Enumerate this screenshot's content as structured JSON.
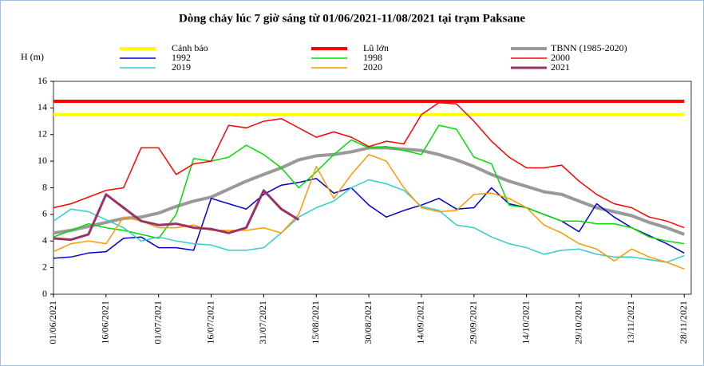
{
  "chart_data": {
    "type": "line",
    "title": "Dòng chảy lúc 7 giờ sáng từ 01/06/2021-11/08/2021 tại trạm Paksane",
    "y_label": "H (m)",
    "x": [
      "01/06/2021",
      "06/06/2021",
      "11/06/2021",
      "16/06/2021",
      "21/06/2021",
      "26/06/2021",
      "01/07/2021",
      "06/07/2021",
      "11/07/2021",
      "16/07/2021",
      "21/07/2021",
      "26/07/2021",
      "31/07/2021",
      "05/08/2021",
      "10/08/2021",
      "15/08/2021",
      "20/08/2021",
      "25/08/2021",
      "30/08/2021",
      "04/09/2021",
      "09/09/2021",
      "14/09/2021",
      "19/09/2021",
      "24/09/2021",
      "29/09/2021",
      "04/10/2021",
      "09/10/2021",
      "14/10/2021",
      "19/10/2021",
      "24/10/2021",
      "29/10/2021",
      "03/11/2021",
      "08/11/2021",
      "13/11/2021",
      "18/11/2021",
      "23/11/2021",
      "28/11/2021"
    ],
    "xlim": [
      "01/06/2021",
      "30/11/2021"
    ],
    "xticks": [
      "01/06/2021",
      "16/06/2021",
      "01/07/2021",
      "16/07/2021",
      "31/07/2021",
      "15/08/2021",
      "30/08/2021",
      "14/09/2021",
      "29/09/2021",
      "14/10/2021",
      "29/10/2021",
      "13/11/2021",
      "28/11/2021"
    ],
    "ylim": [
      0,
      16
    ],
    "yticks": [
      0,
      2,
      4,
      6,
      8,
      10,
      12,
      14,
      16
    ],
    "series": [
      {
        "name": "Cảnh báo",
        "color": "#ffff00",
        "width": 4,
        "values": [
          13.5,
          13.5,
          13.5,
          13.5,
          13.5,
          13.5,
          13.5,
          13.5,
          13.5,
          13.5,
          13.5,
          13.5,
          13.5,
          13.5,
          13.5,
          13.5,
          13.5,
          13.5,
          13.5,
          13.5,
          13.5,
          13.5,
          13.5,
          13.5,
          13.5,
          13.5,
          13.5,
          13.5,
          13.5,
          13.5,
          13.5,
          13.5,
          13.5,
          13.5,
          13.5,
          13.5,
          13.5
        ]
      },
      {
        "name": "Lũ lớn",
        "color": "#ff0000",
        "width": 4,
        "values": [
          14.5,
          14.5,
          14.5,
          14.5,
          14.5,
          14.5,
          14.5,
          14.5,
          14.5,
          14.5,
          14.5,
          14.5,
          14.5,
          14.5,
          14.5,
          14.5,
          14.5,
          14.5,
          14.5,
          14.5,
          14.5,
          14.5,
          14.5,
          14.5,
          14.5,
          14.5,
          14.5,
          14.5,
          14.5,
          14.5,
          14.5,
          14.5,
          14.5,
          14.5,
          14.5,
          14.5,
          14.5
        ]
      },
      {
        "name": "TBNN (1985-2020)",
        "color": "#999999",
        "width": 4,
        "values": [
          4.6,
          4.8,
          5.1,
          5.4,
          5.7,
          5.8,
          6.1,
          6.6,
          7.0,
          7.3,
          7.9,
          8.5,
          9.0,
          9.5,
          10.1,
          10.4,
          10.5,
          10.7,
          11.0,
          11.0,
          10.9,
          10.8,
          10.5,
          10.1,
          9.6,
          9.0,
          8.5,
          8.1,
          7.7,
          7.5,
          7.0,
          6.5,
          6.2,
          5.9,
          5.4,
          5.0,
          4.5
        ]
      },
      {
        "name": "1992",
        "color": "#0000cc",
        "width": 1.5,
        "values": [
          2.7,
          2.8,
          3.1,
          3.2,
          4.2,
          4.3,
          3.5,
          3.5,
          3.3,
          7.2,
          6.8,
          6.4,
          7.5,
          8.2,
          8.4,
          8.7,
          7.6,
          8.0,
          6.7,
          5.8,
          6.3,
          6.7,
          7.2,
          6.4,
          6.5,
          8.0,
          6.8,
          6.5,
          6.0,
          5.5,
          4.7,
          6.8,
          5.8,
          5.0,
          4.4,
          3.8,
          3.1
        ]
      },
      {
        "name": "1998",
        "color": "#00dd00",
        "width": 1.5,
        "values": [
          4.3,
          4.8,
          5.3,
          5.0,
          4.8,
          4.5,
          4.2,
          6.0,
          10.2,
          10.0,
          10.3,
          11.2,
          10.5,
          9.5,
          8.0,
          9.2,
          10.5,
          11.6,
          11.0,
          11.1,
          10.8,
          10.5,
          12.7,
          12.4,
          10.3,
          9.8,
          6.7,
          6.5,
          6.0,
          5.5,
          5.5,
          5.3,
          5.3,
          5.0,
          4.3,
          4.0,
          3.8
        ]
      },
      {
        "name": "2000",
        "color": "#ff0000",
        "width": 1.5,
        "values": [
          6.5,
          6.8,
          7.3,
          7.8,
          8.0,
          11.0,
          11.0,
          9.0,
          9.8,
          10.0,
          12.7,
          12.5,
          13.0,
          13.2,
          12.5,
          11.8,
          12.2,
          11.8,
          11.1,
          11.5,
          11.3,
          13.5,
          14.4,
          14.3,
          13.0,
          11.5,
          10.3,
          9.5,
          9.5,
          9.7,
          8.5,
          7.5,
          6.8,
          6.5,
          5.8,
          5.5,
          5.0
        ]
      },
      {
        "name": "2019",
        "color": "#33cccc",
        "width": 1.5,
        "values": [
          5.5,
          6.4,
          6.2,
          5.6,
          5.0,
          4.0,
          4.3,
          4.0,
          3.8,
          3.7,
          3.3,
          3.3,
          3.5,
          4.6,
          5.8,
          6.5,
          7.0,
          8.0,
          8.6,
          8.3,
          7.8,
          6.6,
          6.3,
          5.2,
          5.0,
          4.3,
          3.8,
          3.5,
          3.0,
          3.3,
          3.4,
          3.0,
          2.8,
          2.8,
          2.6,
          2.4,
          2.9
        ]
      },
      {
        "name": "2020",
        "color": "#ff9900",
        "width": 1.5,
        "values": [
          3.2,
          3.8,
          4.0,
          3.8,
          5.8,
          5.5,
          5.0,
          5.0,
          5.2,
          4.8,
          4.8,
          4.8,
          5.0,
          4.6,
          6.0,
          9.6,
          7.2,
          9.0,
          10.5,
          10.0,
          8.0,
          6.5,
          6.2,
          6.3,
          7.5,
          7.6,
          7.2,
          6.5,
          5.2,
          4.6,
          3.8,
          3.4,
          2.5,
          3.4,
          2.8,
          2.4,
          1.9
        ]
      },
      {
        "name": "2021",
        "color": "#993366",
        "width": 3,
        "values": [
          4.2,
          4.1,
          4.5,
          7.5,
          6.5,
          5.5,
          5.2,
          5.3,
          5.0,
          4.9,
          4.6,
          5.0,
          7.8,
          6.4,
          5.6,
          null,
          null,
          null,
          null,
          null,
          null,
          null,
          null,
          null,
          null,
          null,
          null,
          null,
          null,
          null,
          null,
          null,
          null,
          null,
          null,
          null,
          null
        ]
      }
    ]
  }
}
